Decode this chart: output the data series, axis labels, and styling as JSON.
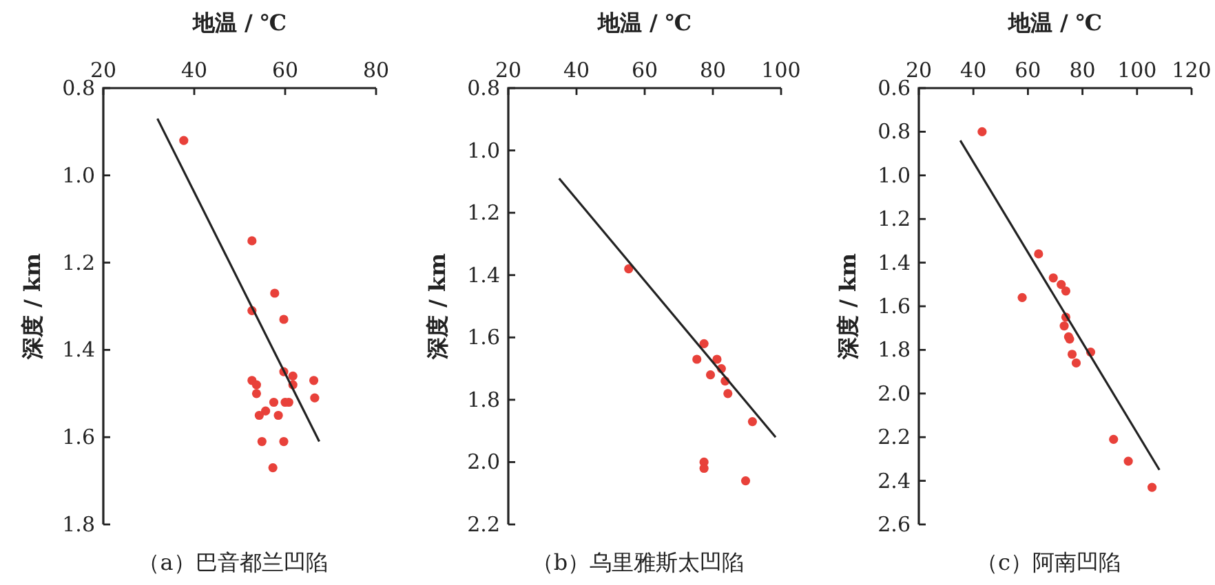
{
  "chart_data": [
    {
      "type": "scatter",
      "title": "（a）巴音都兰凹陷",
      "xlabel": "地温 / ℃",
      "ylabel": "深度 / km",
      "xlim": [
        20,
        80
      ],
      "xticks": [
        20,
        40,
        60,
        80
      ],
      "ylim": [
        1.8,
        0.8
      ],
      "yticks": [
        {
          "value": 0.8,
          "label": "0.8"
        },
        {
          "value": 1,
          "label": "1.0"
        },
        {
          "value": 1.2,
          "label": "1.2"
        },
        {
          "value": 1.4,
          "label": "1.4"
        },
        {
          "value": 1.6,
          "label": "1.6"
        },
        {
          "value": 1.8,
          "label": "1.8"
        }
      ],
      "marker": "circle",
      "series": [
        {
          "color": "#e8413a",
          "x": [
            37.7,
            52.7,
            57.7,
            52.7,
            59.7,
            59.7,
            61.7,
            61.7,
            66.3,
            66.5,
            52.7,
            53.7,
            53.7,
            57.5,
            60,
            60.8,
            55.7,
            58.5,
            54.3,
            54.9,
            59.7,
            57.3
          ],
          "values": [
            0.92,
            1.15,
            1.27,
            1.31,
            1.33,
            1.45,
            1.46,
            1.48,
            1.47,
            1.51,
            1.47,
            1.48,
            1.5,
            1.52,
            1.52,
            1.52,
            1.54,
            1.55,
            1.55,
            1.61,
            1.61,
            1.67
          ]
        },
        {
          "type": "line",
          "marker": "none",
          "color": "#222222",
          "x": [
            31.9,
            67.5
          ],
          "values": [
            0.87,
            1.61
          ]
        }
      ]
    },
    {
      "type": "scatter",
      "title": "（b）乌里雅斯太凹陷",
      "xlabel": "地温 / ℃",
      "ylabel": "深度 / km",
      "xlim": [
        20,
        100
      ],
      "xticks": [
        20,
        40,
        60,
        80,
        100
      ],
      "ylim": [
        2.2,
        0.8
      ],
      "yticks": [
        {
          "value": 0.8,
          "label": "0.8"
        },
        {
          "value": 1,
          "label": "1.0"
        },
        {
          "value": 1.2,
          "label": "1.2"
        },
        {
          "value": 1.4,
          "label": "1.4"
        },
        {
          "value": 1.6,
          "label": "1.6"
        },
        {
          "value": 1.8,
          "label": "1.8"
        },
        {
          "value": 2,
          "label": "2.0"
        },
        {
          "value": 2.2,
          "label": "2.2"
        }
      ],
      "marker": "circle",
      "series": [
        {
          "color": "#e8413a",
          "x": [
            55.3,
            77.4,
            75.3,
            81.2,
            82.5,
            79.3,
            83.6,
            84.4,
            91.6,
            77.4,
            77.4,
            89.6
          ],
          "values": [
            1.38,
            1.62,
            1.67,
            1.67,
            1.7,
            1.72,
            1.74,
            1.78,
            1.87,
            2,
            2.02,
            2.06
          ]
        },
        {
          "type": "line",
          "marker": "none",
          "color": "#222222",
          "x": [
            34.9,
            98.4
          ],
          "values": [
            1.09,
            1.92
          ]
        }
      ]
    },
    {
      "type": "scatter",
      "title": "（c）阿南凹陷",
      "xlabel": "地温 / ℃",
      "ylabel": "深度 / km",
      "xlim": [
        20,
        120
      ],
      "xticks": [
        20,
        40,
        60,
        80,
        100,
        120
      ],
      "ylim": [
        2.6,
        0.6
      ],
      "yticks": [
        {
          "value": 0.6,
          "label": "0.6"
        },
        {
          "value": 0.8,
          "label": "0.8"
        },
        {
          "value": 1,
          "label": "1.0"
        },
        {
          "value": 1.2,
          "label": "1.2"
        },
        {
          "value": 1.4,
          "label": "1.4"
        },
        {
          "value": 1.6,
          "label": "1.6"
        },
        {
          "value": 1.8,
          "label": "1.8"
        },
        {
          "value": 2,
          "label": "2.0"
        },
        {
          "value": 2.2,
          "label": "2.2"
        },
        {
          "value": 2.4,
          "label": "2.4"
        },
        {
          "value": 2.6,
          "label": "2.6"
        }
      ],
      "marker": "circle",
      "series": [
        {
          "color": "#e8413a",
          "x": [
            43.2,
            63.9,
            57.9,
            69.3,
            72.2,
            73.9,
            73.9,
            73.3,
            74.9,
            75.3,
            76.2,
            77.7,
            83,
            91.4,
            96.8,
            105.5
          ],
          "values": [
            0.8,
            1.36,
            1.56,
            1.47,
            1.5,
            1.53,
            1.65,
            1.69,
            1.74,
            1.75,
            1.82,
            1.86,
            1.81,
            2.21,
            2.31,
            2.43
          ]
        },
        {
          "type": "line",
          "marker": "none",
          "color": "#222222",
          "x": [
            35.2,
            108.2
          ],
          "values": [
            0.84,
            2.35
          ]
        }
      ]
    }
  ]
}
